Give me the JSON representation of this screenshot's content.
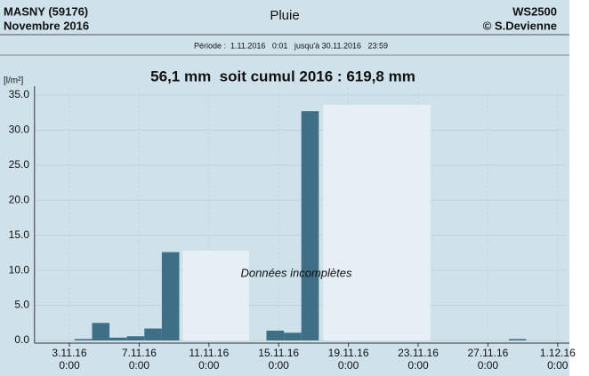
{
  "chart_data": {
    "type": "bar",
    "station": "MASNY (59176)",
    "period": "Novembre 2016",
    "title": "Pluie",
    "device": "WS2500",
    "author": "© S.Devienne",
    "subtitle": "Période :  1.11.2016   0:01   jusqu'à 30.11.2016   23:59",
    "headline": "56,1 mm  soit cumul 2016 : 619,8 mm",
    "y_label": "[l/m²]",
    "annotation": "Données incomplètes",
    "color": "#3f6f87",
    "incomplete_color": "#e5eff5",
    "grid": true,
    "xlim": [
      1,
      31.5
    ],
    "xticks": [
      {
        "value": 3,
        "label": "3.11.16\n0:00"
      },
      {
        "value": 7,
        "label": "7.11.16\n0:00"
      },
      {
        "value": 11,
        "label": "11.11.16\n0:00"
      },
      {
        "value": 15,
        "label": "15.11.16\n0:00"
      },
      {
        "value": 19,
        "label": "19.11.16\n0:00"
      },
      {
        "value": 23,
        "label": "23.11.16\n0:00"
      },
      {
        "value": 27,
        "label": "27.11.16\n0:00"
      },
      {
        "value": 31,
        "label": "1.12.16\n0:00"
      }
    ],
    "ylim": [
      0,
      35
    ],
    "yticks": [
      {
        "value": 0,
        "label": "0.0"
      },
      {
        "value": 5,
        "label": "5.0"
      },
      {
        "value": 10,
        "label": "10.0"
      },
      {
        "value": 15,
        "label": "15.0"
      },
      {
        "value": 20,
        "label": "20.0"
      },
      {
        "value": 25,
        "label": "25.0"
      },
      {
        "value": 30,
        "label": "30.0"
      },
      {
        "value": 35,
        "label": "35.0"
      }
    ],
    "x": [
      3.8,
      4.8,
      5.8,
      6.8,
      7.8,
      8.8,
      14.8,
      15.8,
      16.8,
      28.7
    ],
    "values": [
      0.2,
      2.5,
      0.4,
      0.6,
      1.7,
      12.6,
      1.4,
      1.1,
      32.7,
      0.2
    ],
    "incomplete": [
      {
        "x": [
          9.5,
          13.3
        ],
        "value": 12.8
      },
      {
        "x": [
          17.55,
          23.7
        ],
        "value": 33.6
      }
    ]
  }
}
